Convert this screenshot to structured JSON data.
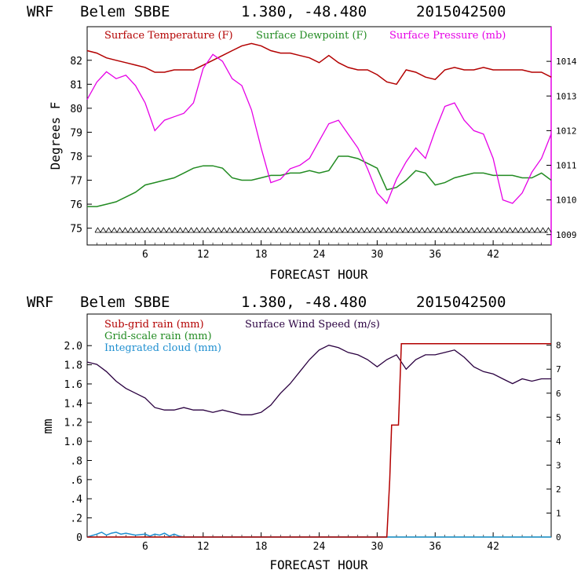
{
  "charts": [
    {
      "header": {
        "model": "WRF",
        "station": "Belem SBBE",
        "coords": "1.380, -48.480",
        "run": "2015042500"
      },
      "xlabel": "FORECAST HOUR",
      "ylabel_left": "Degrees F",
      "xticks": [
        "6",
        "12",
        "18",
        "24",
        "30",
        "36",
        "42"
      ],
      "yticks_left": [
        "75",
        "76",
        "77",
        "78",
        "79",
        "80",
        "81",
        "82"
      ],
      "yticks_right": [
        "1009",
        "1010",
        "1011",
        "1012",
        "1013",
        "1014"
      ],
      "legend": [
        {
          "name": "Surface Temperature (F)",
          "color": "#b30000"
        },
        {
          "name": "Surface Dewpoint (F)",
          "color": "#228b22"
        },
        {
          "name": "Surface Pressure (mb)",
          "color": "#e600e6"
        }
      ]
    },
    {
      "header": {
        "model": "WRF",
        "station": "Belem SBBE",
        "coords": "1.380, -48.480",
        "run": "2015042500"
      },
      "xlabel": "FORECAST HOUR",
      "ylabel_left": "mm",
      "xticks": [
        "6",
        "12",
        "18",
        "24",
        "30",
        "36",
        "42"
      ],
      "yticks_left": [
        "0",
        ".2",
        ".4",
        ".6",
        ".8",
        "1.0",
        "1.2",
        "1.4",
        "1.6",
        "1.8",
        "2.0"
      ],
      "yticks_right": [
        "0",
        "1",
        "2",
        "3",
        "4",
        "5",
        "6",
        "7",
        "8"
      ],
      "legend": [
        {
          "name": "Sub-grid rain (mm)",
          "color": "#b30000"
        },
        {
          "name": "Grid-scale rain (mm)",
          "color": "#228b22"
        },
        {
          "name": "Integrated cloud (mm)",
          "color": "#1f8fd0"
        },
        {
          "name": "Surface Wind Speed (m/s)",
          "color": "#2a0040"
        }
      ]
    }
  ],
  "chart_data": [
    {
      "type": "line",
      "x_range": [
        0,
        48
      ],
      "ylim_left": [
        74.3,
        83.4
      ],
      "ylim_right": [
        1008.7,
        1015.0
      ],
      "grid": false,
      "legend_placement": "top",
      "series": [
        {
          "name": "Surface Temperature (F)",
          "axis": "left",
          "x": [
            0,
            1,
            2,
            3,
            4,
            5,
            6,
            7,
            8,
            9,
            10,
            11,
            12,
            13,
            14,
            15,
            16,
            17,
            18,
            19,
            20,
            21,
            22,
            23,
            24,
            25,
            26,
            27,
            28,
            29,
            30,
            31,
            32,
            33,
            34,
            35,
            36,
            37,
            38,
            39,
            40,
            41,
            42,
            43,
            44,
            45,
            46,
            47,
            48
          ],
          "y": [
            82.4,
            82.3,
            82.1,
            82.0,
            81.9,
            81.8,
            81.7,
            81.5,
            81.5,
            81.6,
            81.6,
            81.6,
            81.8,
            82.0,
            82.2,
            82.4,
            82.6,
            82.7,
            82.6,
            82.4,
            82.3,
            82.3,
            82.2,
            82.1,
            81.9,
            82.2,
            81.9,
            81.7,
            81.6,
            81.6,
            81.4,
            81.1,
            81.0,
            81.6,
            81.5,
            81.3,
            81.2,
            81.6,
            81.7,
            81.6,
            81.6,
            81.7,
            81.6,
            81.6,
            81.6,
            81.6,
            81.5,
            81.5,
            81.3
          ]
        },
        {
          "name": "Surface Dewpoint (F)",
          "axis": "left",
          "x": [
            0,
            1,
            2,
            3,
            4,
            5,
            6,
            7,
            8,
            9,
            10,
            11,
            12,
            13,
            14,
            15,
            16,
            17,
            18,
            19,
            20,
            21,
            22,
            23,
            24,
            25,
            26,
            27,
            28,
            29,
            30,
            31,
            32,
            33,
            34,
            35,
            36,
            37,
            38,
            39,
            40,
            41,
            42,
            43,
            44,
            45,
            46,
            47,
            48
          ],
          "y": [
            75.9,
            75.9,
            76.0,
            76.1,
            76.3,
            76.5,
            76.8,
            76.9,
            77.0,
            77.1,
            77.3,
            77.5,
            77.6,
            77.6,
            77.5,
            77.1,
            77.0,
            77.0,
            77.1,
            77.2,
            77.2,
            77.3,
            77.3,
            77.4,
            77.3,
            77.4,
            78.0,
            78.0,
            77.9,
            77.7,
            77.5,
            76.6,
            76.7,
            77.0,
            77.4,
            77.3,
            76.8,
            76.9,
            77.1,
            77.2,
            77.3,
            77.3,
            77.2,
            77.2,
            77.2,
            77.1,
            77.1,
            77.3,
            77.0
          ]
        },
        {
          "name": "Surface Pressure (mb)",
          "axis": "right",
          "x": [
            0,
            1,
            2,
            3,
            4,
            5,
            6,
            7,
            8,
            9,
            10,
            11,
            12,
            13,
            14,
            15,
            16,
            17,
            18,
            19,
            20,
            21,
            22,
            23,
            24,
            25,
            26,
            27,
            28,
            29,
            30,
            31,
            32,
            33,
            34,
            35,
            36,
            37,
            38,
            39,
            40,
            41,
            42,
            43,
            44,
            45,
            46,
            47,
            48
          ],
          "y": [
            1012.9,
            1013.4,
            1013.7,
            1013.5,
            1013.6,
            1013.3,
            1012.8,
            1012.0,
            1012.3,
            1012.4,
            1012.5,
            1012.8,
            1013.8,
            1014.2,
            1014.0,
            1013.5,
            1013.3,
            1012.6,
            1011.5,
            1010.5,
            1010.6,
            1010.9,
            1011.0,
            1011.2,
            1011.7,
            1012.2,
            1012.3,
            1011.9,
            1011.5,
            1010.9,
            1010.2,
            1009.9,
            1010.6,
            1011.1,
            1011.5,
            1011.2,
            1012.0,
            1012.7,
            1012.8,
            1012.3,
            1012.0,
            1011.9,
            1011.2,
            1010.0,
            1009.9,
            1010.2,
            1010.8,
            1011.2,
            1011.9
          ]
        }
      ]
    },
    {
      "type": "line",
      "x_range": [
        0,
        48
      ],
      "ylim_left": [
        0,
        2.33
      ],
      "ylim_right": [
        0,
        9.3
      ],
      "grid": false,
      "legend_placement": "top-left",
      "series": [
        {
          "name": "Sub-grid rain (mm)",
          "axis": "left",
          "x": [
            0,
            31,
            31.3,
            31.5,
            32.2,
            32.5,
            33,
            40,
            48
          ],
          "y": [
            0,
            0,
            0.6,
            1.17,
            1.17,
            2.02,
            2.02,
            2.02,
            2.02
          ]
        },
        {
          "name": "Grid-scale rain (mm)",
          "axis": "left",
          "x": [
            0,
            48
          ],
          "y": [
            0,
            0
          ]
        },
        {
          "name": "Integrated cloud (mm)",
          "axis": "left",
          "x": [
            0,
            1,
            1.5,
            2,
            2.5,
            3,
            3.5,
            4,
            5,
            6,
            6.5,
            7,
            7.5,
            8,
            8.5,
            9,
            9.5,
            10,
            48
          ],
          "y": [
            0,
            0.03,
            0.05,
            0.02,
            0.04,
            0.05,
            0.03,
            0.04,
            0.02,
            0.03,
            0.01,
            0.03,
            0.02,
            0.04,
            0.01,
            0.03,
            0.01,
            0,
            0
          ]
        },
        {
          "name": "Surface Wind Speed (m/s)",
          "axis": "right",
          "x": [
            0,
            1,
            2,
            3,
            4,
            5,
            6,
            7,
            8,
            9,
            10,
            11,
            12,
            13,
            14,
            15,
            16,
            17,
            18,
            19,
            20,
            21,
            22,
            23,
            24,
            25,
            26,
            27,
            28,
            29,
            30,
            31,
            32,
            33,
            34,
            35,
            36,
            37,
            38,
            39,
            40,
            41,
            42,
            43,
            44,
            45,
            46,
            47,
            48
          ],
          "y": [
            7.3,
            7.2,
            6.9,
            6.5,
            6.2,
            6.0,
            5.8,
            5.4,
            5.3,
            5.3,
            5.4,
            5.3,
            5.3,
            5.2,
            5.3,
            5.2,
            5.1,
            5.1,
            5.2,
            5.5,
            6.0,
            6.4,
            6.9,
            7.4,
            7.8,
            8.0,
            7.9,
            7.7,
            7.6,
            7.4,
            7.1,
            7.4,
            7.6,
            7.0,
            7.4,
            7.6,
            7.6,
            7.7,
            7.8,
            7.5,
            7.1,
            6.9,
            6.8,
            6.6,
            6.4,
            6.6,
            6.5,
            6.6,
            6.6
          ]
        }
      ]
    }
  ]
}
